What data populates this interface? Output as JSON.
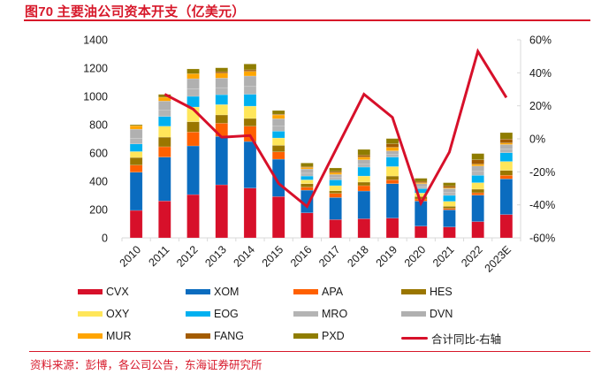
{
  "title": "图70  主要油公司资本开支（亿美元）",
  "source": "资料来源：彭博，各公司公告，东海证券研究所",
  "chart_data": {
    "type": "bar",
    "stacked": true,
    "title": "主要油公司资本开支（亿美元）",
    "xlabel": "",
    "ylabel": "",
    "categories": [
      "2010",
      "2011",
      "2012",
      "2013",
      "2014",
      "2015",
      "2016",
      "2017",
      "2018",
      "2019",
      "2020",
      "2021",
      "2022",
      "2023E"
    ],
    "ylim": [
      0,
      1400
    ],
    "yticks": [
      0,
      200,
      400,
      600,
      800,
      1000,
      1200,
      1400
    ],
    "y2lim": [
      -60,
      60
    ],
    "y2ticks": [
      "-60%",
      "-40%",
      "-20%",
      "0%",
      "20%",
      "40%",
      "60%"
    ],
    "y2tick_values": [
      -60,
      -40,
      -20,
      0,
      20,
      40,
      60
    ],
    "grid": false,
    "legend_position": "bottom",
    "series": [
      {
        "name": "CVX",
        "color": "#d7102a",
        "values": [
          194,
          261,
          306,
          375,
          352,
          292,
          177,
          129,
          135,
          140,
          83,
          77,
          115,
          165
        ]
      },
      {
        "name": "XOM",
        "color": "#0b6cbf",
        "values": [
          270,
          310,
          344,
          342,
          329,
          264,
          160,
          156,
          196,
          243,
          177,
          121,
          187,
          252
        ]
      },
      {
        "name": "APA",
        "color": "#ff6000",
        "values": [
          50,
          73,
          98,
          93,
          108,
          52,
          21,
          29,
          38,
          27,
          15,
          10,
          17,
          25
        ]
      },
      {
        "name": "HES",
        "color": "#9a7600",
        "values": [
          54,
          68,
          73,
          59,
          55,
          46,
          25,
          19,
          25,
          27,
          17,
          15,
          25,
          35
        ]
      },
      {
        "name": "OXY",
        "color": "#ffe65a",
        "values": [
          42,
          77,
          104,
          73,
          87,
          52,
          27,
          36,
          43,
          67,
          25,
          35,
          46,
          63
        ]
      },
      {
        "name": "EOG",
        "color": "#00b0f0",
        "values": [
          54,
          69,
          75,
          70,
          84,
          48,
          27,
          41,
          63,
          67,
          31,
          42,
          52,
          62
        ]
      },
      {
        "name": "MRO",
        "color": "#b4b4b4",
        "values": [
          40,
          45,
          55,
          50,
          55,
          35,
          20,
          16,
          22,
          18,
          14,
          20,
          28,
          25
        ]
      },
      {
        "name": "DVN",
        "color": "#b0b0b0",
        "values": [
          64,
          64,
          70,
          67,
          74,
          53,
          30,
          22,
          30,
          26,
          21,
          28,
          38,
          33
        ]
      },
      {
        "name": "MUR",
        "color": "#ffa500",
        "values": [
          25,
          27,
          35,
          35,
          33,
          27,
          11,
          14,
          19,
          25,
          7,
          6,
          13,
          11
        ]
      },
      {
        "name": "FANG",
        "color": "#a35c00",
        "values": [
          0,
          0,
          0,
          11,
          11,
          5,
          5,
          8,
          14,
          25,
          10,
          14,
          31,
          27
        ]
      },
      {
        "name": "PXD",
        "color": "#8f7d00",
        "values": [
          7,
          20,
          34,
          27,
          41,
          26,
          26,
          24,
          40,
          37,
          21,
          22,
          44,
          46
        ]
      }
    ],
    "line_series": {
      "name": "合计同比-右轴",
      "axis": "right",
      "color": "#d7102a",
      "categories": [
        "2011",
        "2012",
        "2013",
        "2014",
        "2015",
        "2016",
        "2017",
        "2018",
        "2019",
        "2020",
        "2021",
        "2022",
        "2023E"
      ],
      "values": [
        27,
        18,
        1,
        2,
        -27,
        -41,
        -7,
        27,
        13,
        -39,
        -8,
        53,
        25
      ]
    }
  },
  "legend": [
    {
      "label": "CVX",
      "color": "#d7102a",
      "kind": "bar"
    },
    {
      "label": "XOM",
      "color": "#0b6cbf",
      "kind": "bar"
    },
    {
      "label": "APA",
      "color": "#ff6000",
      "kind": "bar"
    },
    {
      "label": "HES",
      "color": "#9a7600",
      "kind": "bar"
    },
    {
      "label": "OXY",
      "color": "#ffe65a",
      "kind": "bar"
    },
    {
      "label": "EOG",
      "color": "#00b0f0",
      "kind": "bar"
    },
    {
      "label": "MRO",
      "color": "#b4b4b4",
      "kind": "bar"
    },
    {
      "label": "DVN",
      "color": "#b0b0b0",
      "kind": "bar"
    },
    {
      "label": "MUR",
      "color": "#ffa500",
      "kind": "bar"
    },
    {
      "label": "FANG",
      "color": "#a35c00",
      "kind": "bar"
    },
    {
      "label": "PXD",
      "color": "#8f7d00",
      "kind": "bar"
    },
    {
      "label": "合计同比-右轴",
      "color": "#d7102a",
      "kind": "line"
    }
  ]
}
